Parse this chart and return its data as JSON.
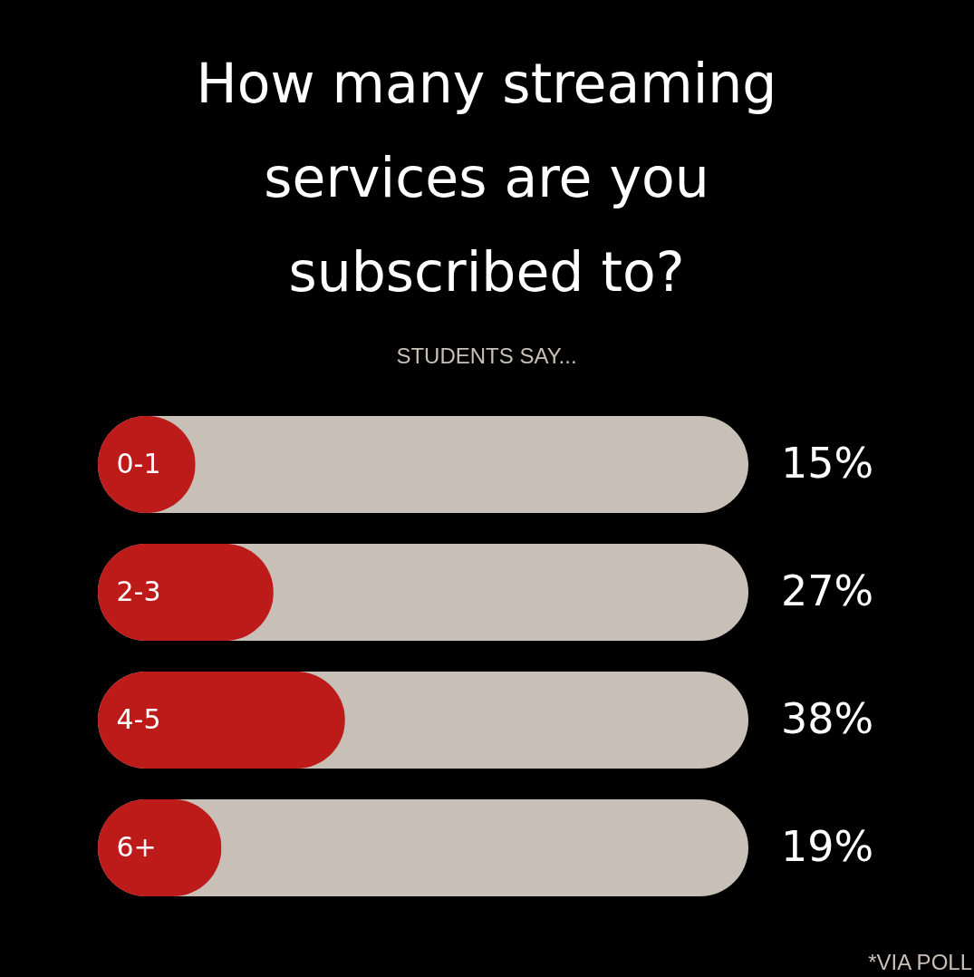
{
  "chart_data": {
    "type": "bar",
    "orientation": "horizontal",
    "title": [
      "How many streaming",
      "services are you",
      "subscribed to?"
    ],
    "subtitle": "STUDENTS SAY...",
    "categories": [
      "0-1",
      "2-3",
      "4-5",
      "6+"
    ],
    "values": [
      15,
      27,
      38,
      19
    ],
    "value_labels": [
      "15%",
      "27%",
      "38%",
      "19%"
    ],
    "color": "#bd1a1a",
    "xlim": [
      0,
      100
    ],
    "tick_labels": "y",
    "annotations": [
      "*VIA POLL"
    ]
  }
}
